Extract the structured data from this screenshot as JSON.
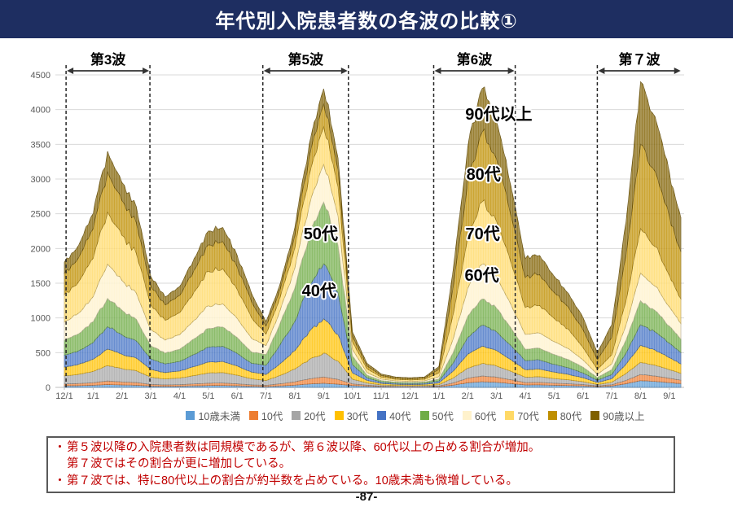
{
  "header": {
    "title": "年代別入院患者数の各波の比較①"
  },
  "footer": {
    "page_number": "-87-"
  },
  "colors": {
    "header_bg": "#1e2e61",
    "note_text": "#C00000",
    "note_border": "#595959",
    "grid": "#D9D9D9",
    "axis": "#BFBFBF",
    "tick_text": "#595959",
    "dash_line": "#262626"
  },
  "notes": {
    "rows": [
      {
        "marker": "・",
        "text": "第５波以降の入院患者数は同規模であるが、第６波以降、60代以上の占める割合が増加。"
      },
      {
        "marker": "",
        "text": "第７波ではその割合が更に増加している。"
      },
      {
        "marker": "・",
        "text": "第７波では、特に80代以上の割合が約半数を占めている。10歳未満も微増している。"
      }
    ]
  },
  "chart_data": {
    "type": "area",
    "stacked": true,
    "title": "",
    "xlabel": "",
    "ylabel": "",
    "ylim": [
      0,
      4500
    ],
    "ytick_labels": [
      "0",
      "500",
      "1000",
      "1500",
      "2000",
      "2500",
      "3000",
      "3500",
      "4000",
      "4500"
    ],
    "xtick_labels": [
      "12/1",
      "1/1",
      "2/1",
      "3/1",
      "4/1",
      "5/1",
      "6/1",
      "7/1",
      "8/1",
      "9/1",
      "10/1",
      "11/1",
      "12/1",
      "1/1",
      "2/1",
      "3/1",
      "4/1",
      "5/1",
      "6/1",
      "7/1",
      "8/1",
      "9/1"
    ],
    "grid": true,
    "legend_position": "bottom",
    "x_months": [
      0,
      0.5,
      1,
      1.5,
      2,
      2.5,
      3,
      3.5,
      4,
      4.5,
      5,
      5.5,
      6,
      6.5,
      7,
      7.5,
      8,
      8.5,
      9,
      9.5,
      10,
      10.5,
      11,
      11.5,
      12,
      12.5,
      13,
      13.5,
      14,
      14.5,
      15,
      15.5,
      16,
      16.5,
      17,
      17.5,
      18,
      18.5,
      19,
      19.5,
      20,
      20.5,
      21,
      21.4
    ],
    "series": [
      {
        "name": "10歳未満",
        "color": "#5B9BD5",
        "values": [
          22,
          25,
          30,
          41,
          35,
          31,
          19,
          16,
          17,
          22,
          27,
          28,
          23,
          16,
          12,
          21,
          32,
          49,
          60,
          46,
          26,
          18,
          10,
          8,
          7,
          8,
          10,
          32,
          66,
          82,
          73,
          55,
          35,
          36,
          30,
          26,
          21,
          11,
          20,
          53,
          97,
          86,
          68,
          54
        ]
      },
      {
        "name": "10代",
        "color": "#ED7D31",
        "values": [
          27,
          31,
          38,
          51,
          44,
          39,
          24,
          20,
          22,
          28,
          34,
          35,
          29,
          20,
          17,
          32,
          48,
          74,
          90,
          69,
          24,
          14,
          8,
          6,
          6,
          6,
          9,
          32,
          66,
          82,
          73,
          55,
          35,
          36,
          30,
          26,
          20,
          10,
          18,
          48,
          88,
          78,
          62,
          49
        ]
      },
      {
        "name": "20代",
        "color": "#A5A5A5",
        "values": [
          117,
          133,
          163,
          221,
          192,
          169,
          104,
          85,
          94,
          120,
          146,
          150,
          124,
          88,
          69,
          120,
          184,
          280,
          344,
          264,
          68,
          32,
          17,
          14,
          13,
          14,
          20,
          71,
          145,
          181,
          162,
          122,
          78,
          80,
          67,
          57,
          41,
          20,
          36,
          101,
          176,
          156,
          124,
          98
        ]
      },
      {
        "name": "30代",
        "color": "#FFC000",
        "values": [
          126,
          144,
          175,
          238,
          207,
          182,
          112,
          91,
          102,
          130,
          158,
          161,
          133,
          95,
          88,
          173,
          265,
          403,
          495,
          380,
          90,
          38,
          21,
          16,
          15,
          16,
          25,
          99,
          200,
          249,
          223,
          168,
          107,
          110,
          93,
          78,
          58,
          28,
          50,
          134,
          246,
          218,
          174,
          137
        ]
      },
      {
        "name": "40代",
        "color": "#4472C4",
        "values": [
          171,
          195,
          238,
          323,
          280,
          247,
          152,
          124,
          138,
          176,
          214,
          219,
          181,
          128,
          133,
          276,
          423,
          644,
          791,
          607,
          118,
          38,
          21,
          16,
          15,
          16,
          27,
          119,
          242,
          301,
          270,
          203,
          130,
          133,
          112,
          95,
          69,
          34,
          60,
          161,
          295,
          261,
          208,
          164
        ]
      },
      {
        "name": "50代",
        "color": "#70AD47",
        "values": [
          216,
          246,
          300,
          408,
          354,
          312,
          192,
          156,
          174,
          222,
          270,
          276,
          228,
          162,
          155,
          311,
          476,
          725,
          890,
          683,
          127,
          38,
          21,
          17,
          15,
          17,
          30,
          150,
          304,
          378,
          339,
          255,
          163,
          167,
          141,
          119,
          84,
          40,
          71,
          190,
          348,
          308,
          245,
          194
        ]
      },
      {
        "name": "60代",
        "color": "#FFF2CC",
        "values": [
          261,
          297,
          363,
          493,
          428,
          377,
          232,
          189,
          210,
          268,
          326,
          334,
          276,
          196,
          129,
          189,
          290,
          441,
          542,
          416,
          94,
          38,
          21,
          17,
          15,
          17,
          34,
          197,
          400,
          499,
          447,
          336,
          215,
          220,
          186,
          157,
          104,
          45,
          81,
          216,
          396,
          351,
          279,
          221
        ]
      },
      {
        "name": "70代",
        "color": "#FFD966",
        "values": [
          396,
          451,
          550,
          748,
          649,
          572,
          352,
          286,
          319,
          407,
          495,
          506,
          418,
          297,
          164,
          189,
          290,
          441,
          542,
          416,
          110,
          53,
          29,
          22,
          21,
          22,
          54,
          355,
          721,
          899,
          805,
          606,
          387,
          397,
          334,
          282,
          179,
          73,
          131,
          350,
          642,
          569,
          453,
          358
        ]
      },
      {
        "name": "80代",
        "color": "#BF8F00",
        "values": [
          306,
          349,
          425,
          578,
          502,
          442,
          272,
          221,
          247,
          315,
          383,
          391,
          323,
          230,
          117,
          114,
          175,
          266,
          327,
          251,
          78,
          42,
          23,
          18,
          17,
          18,
          53,
          396,
          804,
          1002,
          897,
          676,
          431,
          443,
          373,
          315,
          257,
          138,
          248,
          662,
          1214,
          1086,
          856,
          676
        ]
      },
      {
        "name": "90歳以上",
        "color": "#7F6000",
        "values": [
          158,
          180,
          220,
          299,
          260,
          229,
          141,
          114,
          128,
          163,
          198,
          202,
          167,
          119,
          66,
          77,
          117,
          179,
          219,
          168,
          64,
          39,
          21,
          16,
          15,
          16,
          38,
          248,
          504,
          628,
          562,
          423,
          270,
          277,
          234,
          197,
          176,
          101,
          185,
          485,
          898,
          787,
          626,
          495
        ]
      }
    ],
    "wave_annotations": [
      {
        "label": "第3波",
        "from": 0.06,
        "to": 2.97,
        "left_dash": true,
        "right_dash": true
      },
      {
        "label": "第5波",
        "from": 6.89,
        "to": 9.86,
        "left_dash": true,
        "right_dash": true
      },
      {
        "label": "第6波",
        "from": 12.82,
        "to": 15.65,
        "left_dash": true,
        "right_dash": true
      },
      {
        "label": "第７波",
        "from": 18.5,
        "to": 21.42,
        "left_dash": true,
        "right_dash": false
      }
    ],
    "age_labels": [
      {
        "text": "50代",
        "t": 8.9,
        "value": 2215
      },
      {
        "text": "40代",
        "t": 8.84,
        "value": 1395
      },
      {
        "text": "90代以上",
        "t": 15.08,
        "value": 3938
      },
      {
        "text": "80代",
        "t": 14.55,
        "value": 3071
      },
      {
        "text": "70代",
        "t": 14.52,
        "value": 2215
      },
      {
        "text": "60代",
        "t": 14.49,
        "value": 1617
      }
    ]
  }
}
